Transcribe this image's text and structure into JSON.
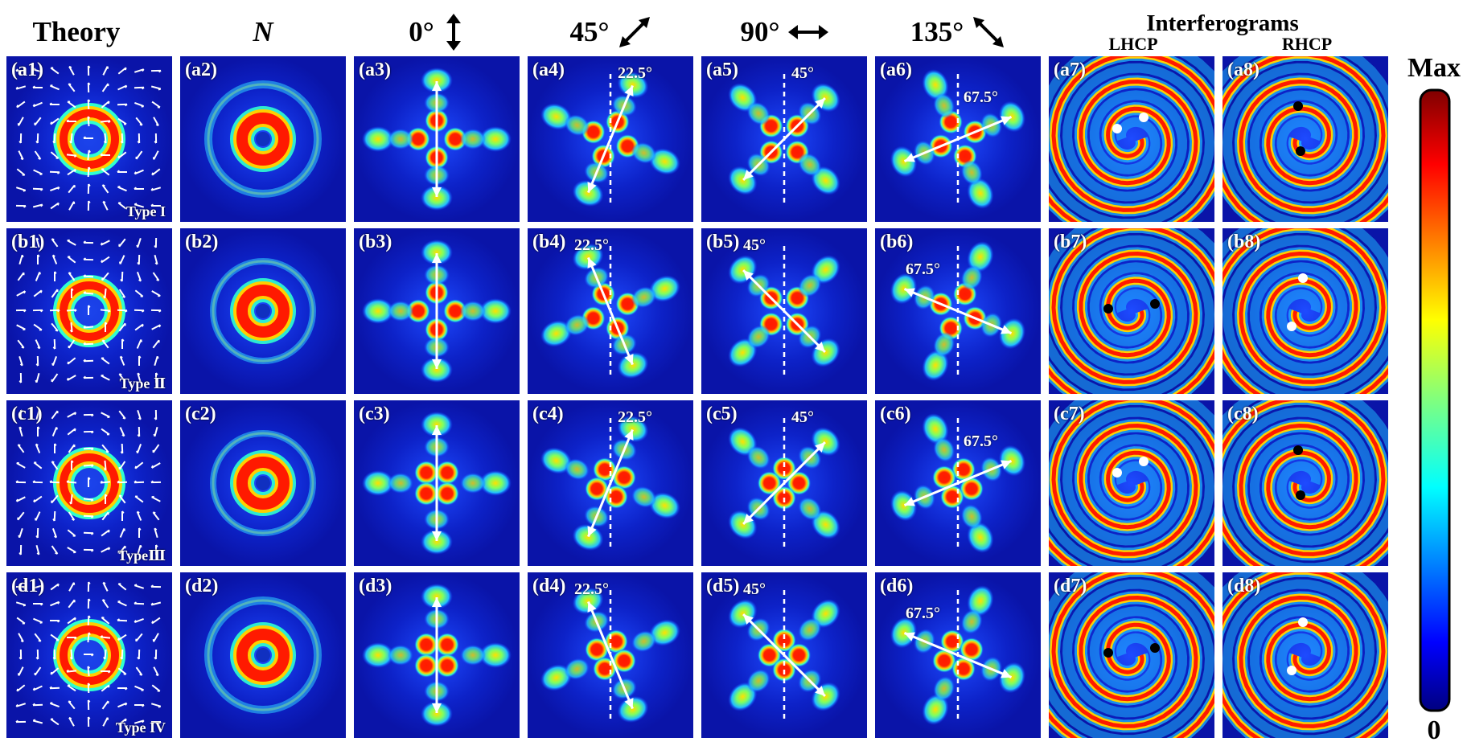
{
  "headers": {
    "theory": "Theory",
    "n": "N",
    "a0": "0°",
    "a45": "45°",
    "a90": "90°",
    "a135": "135°",
    "interferograms": "Interferograms",
    "lhcp": "LHCP",
    "rhcp": "RHCP"
  },
  "rows": [
    {
      "id": "a",
      "type_label": "Type I",
      "labels": [
        "(a1)",
        "(a2)",
        "(a3)",
        "(a4)",
        "(a5)",
        "(a6)",
        "(a7)",
        "(a8)"
      ],
      "angles": {
        "a4": "22.5°",
        "a5": "45°",
        "a6": "67.5°"
      }
    },
    {
      "id": "b",
      "type_label": "Type Ⅱ",
      "labels": [
        "(b1)",
        "(b2)",
        "(b3)",
        "(b4)",
        "(b5)",
        "(b6)",
        "(b7)",
        "(b8)"
      ],
      "angles": {
        "a4": "22.5°",
        "a5": "45°",
        "a6": "67.5°"
      }
    },
    {
      "id": "c",
      "type_label": "TypeⅢ",
      "labels": [
        "(c1)",
        "(c2)",
        "(c3)",
        "(c4)",
        "(c5)",
        "(c6)",
        "(c7)",
        "(c8)"
      ],
      "angles": {
        "a4": "22.5°",
        "a5": "45°",
        "a6": "67.5°"
      }
    },
    {
      "id": "d",
      "type_label": "Type IV",
      "labels": [
        "(d1)",
        "(d2)",
        "(d3)",
        "(d4)",
        "(d5)",
        "(d6)",
        "(d7)",
        "(d8)"
      ],
      "angles": {
        "a4": "22.5°",
        "a5": "45°",
        "a6": "67.5°"
      }
    }
  ],
  "colorbar": {
    "max_label": "Max",
    "min_label": "0"
  },
  "colors": {
    "background": "#0a14a8",
    "arrow": "#ffffff",
    "frame": "#000000"
  }
}
